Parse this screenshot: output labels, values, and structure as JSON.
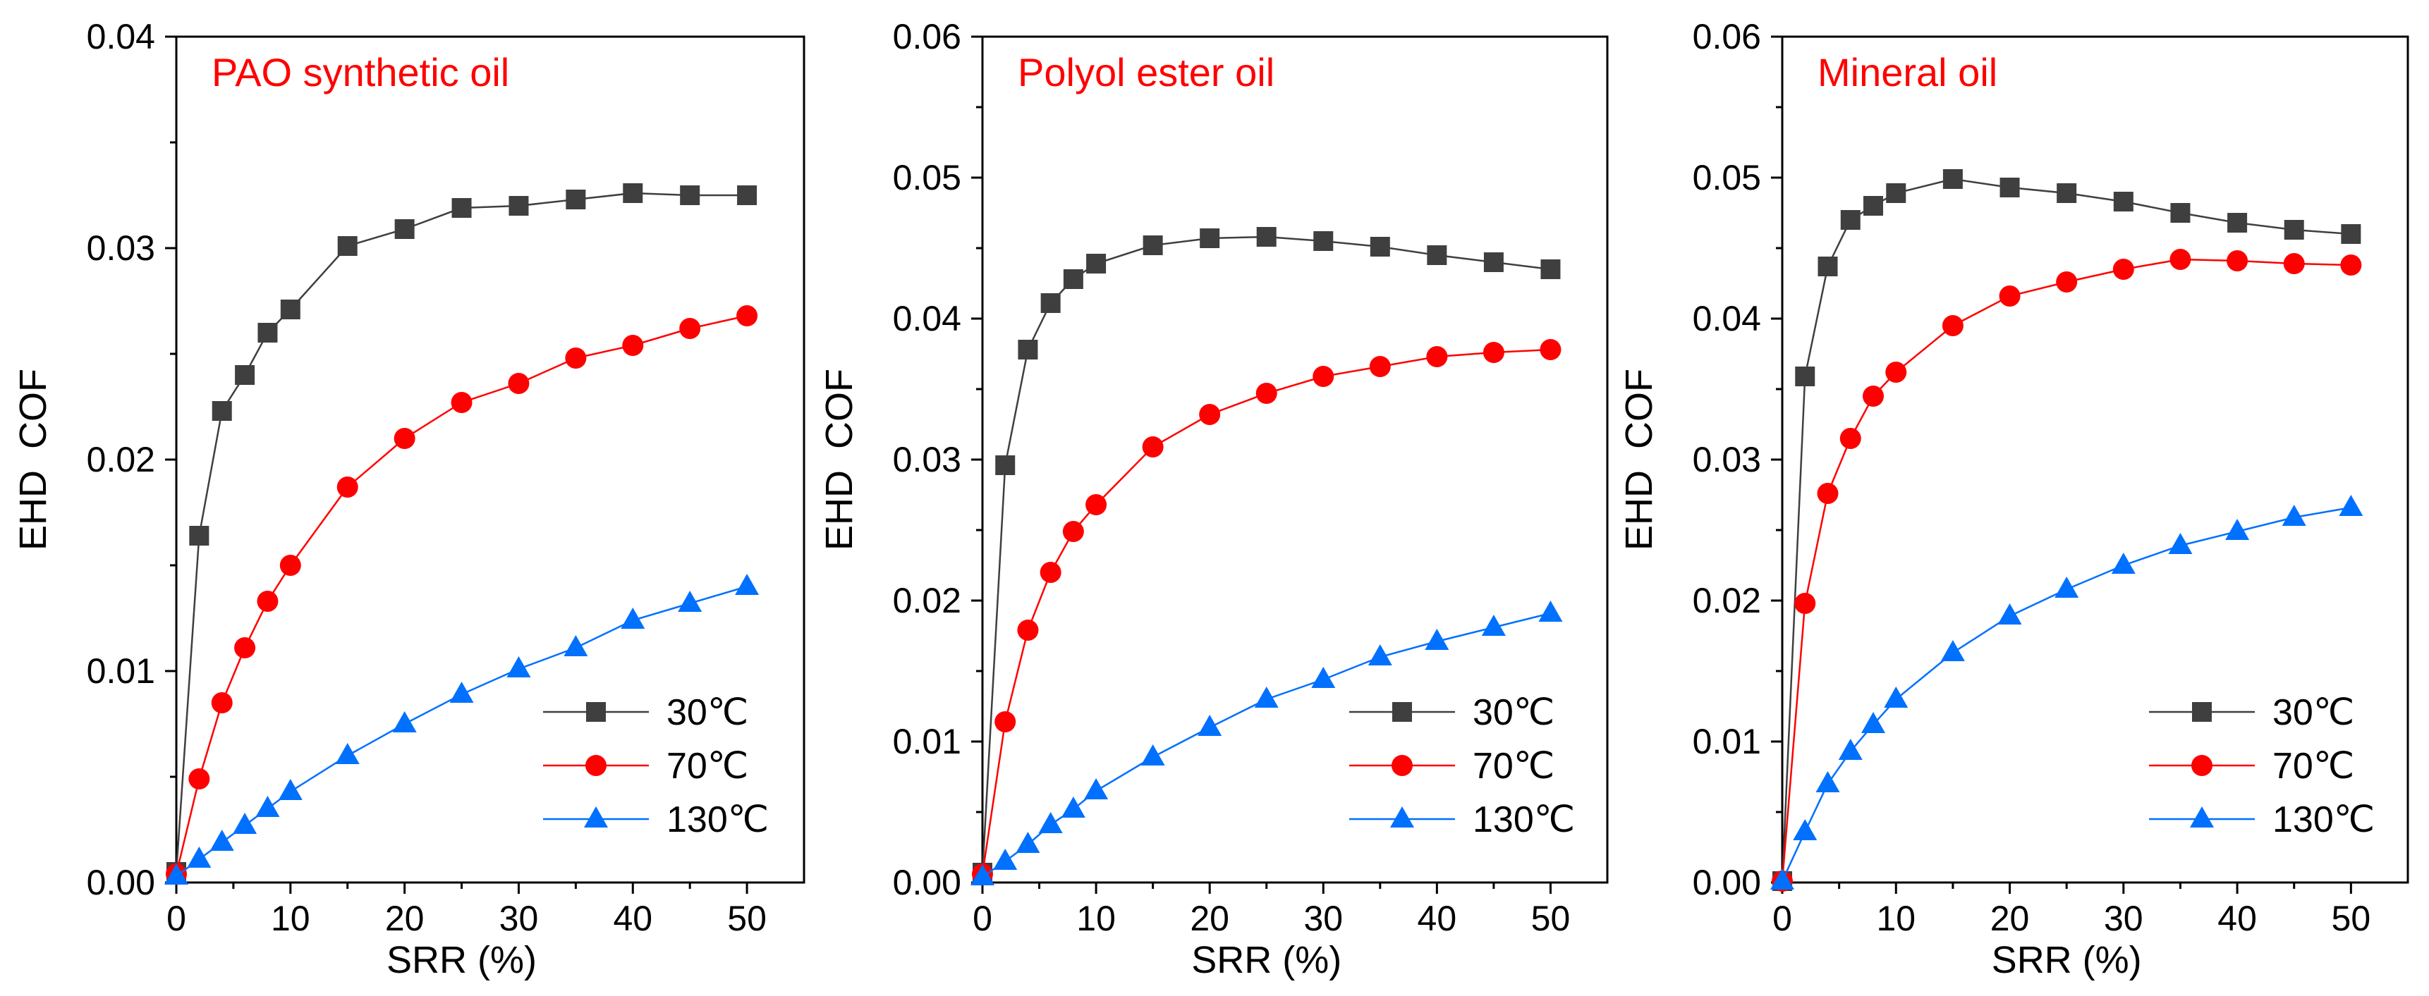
{
  "chart_data": [
    {
      "type": "line",
      "title": "PAO synthetic oil",
      "xlabel": "SRR (%)",
      "ylabel": "EHD  COF",
      "xlim": [
        0,
        55
      ],
      "ylim": [
        0,
        0.04
      ],
      "xticks": [
        0,
        10,
        20,
        30,
        40,
        50
      ],
      "xtick_labels": [
        "0",
        "10",
        "20",
        "30",
        "40",
        "50"
      ],
      "yticks": [
        0,
        0.01,
        0.02,
        0.03,
        0.04
      ],
      "ytick_labels": [
        "0.00",
        "0.01",
        "0.02",
        "0.03",
        "0.04"
      ],
      "x": [
        0,
        2,
        4,
        6,
        8,
        10,
        15,
        20,
        25,
        30,
        35,
        40,
        45,
        50
      ],
      "series": [
        {
          "name": "30℃",
          "marker": "square",
          "color": "#3f3f3f",
          "values": [
            0.0005,
            0.0164,
            0.0223,
            0.024,
            0.026,
            0.0271,
            0.0301,
            0.0309,
            0.0319,
            0.032,
            0.0323,
            0.0326,
            0.0325,
            0.0325
          ]
        },
        {
          "name": "70℃",
          "marker": "circle",
          "color": "#ff0000",
          "values": [
            0.0004,
            0.0049,
            0.0085,
            0.0111,
            0.0133,
            0.015,
            0.0187,
            0.021,
            0.0227,
            0.0236,
            0.0248,
            0.0254,
            0.0262,
            0.0268
          ]
        },
        {
          "name": "130℃",
          "marker": "triangle",
          "color": "#0070ff",
          "values": [
            0.0003,
            0.0011,
            0.0019,
            0.0027,
            0.0035,
            0.0043,
            0.006,
            0.0075,
            0.0089,
            0.0101,
            0.0111,
            0.0124,
            0.0132,
            0.014
          ]
        }
      ]
    },
    {
      "type": "line",
      "title": "Polyol ester oil",
      "xlabel": "SRR (%)",
      "ylabel": "EHD  COF",
      "xlim": [
        0,
        55
      ],
      "ylim": [
        0,
        0.06
      ],
      "xticks": [
        0,
        10,
        20,
        30,
        40,
        50
      ],
      "xtick_labels": [
        "0",
        "10",
        "20",
        "30",
        "40",
        "50"
      ],
      "yticks": [
        0,
        0.01,
        0.02,
        0.03,
        0.04,
        0.05,
        0.06
      ],
      "ytick_labels": [
        "0.00",
        "0.01",
        "0.02",
        "0.03",
        "0.04",
        "0.05",
        "0.06"
      ],
      "x": [
        0,
        2,
        4,
        6,
        8,
        10,
        15,
        20,
        25,
        30,
        35,
        40,
        45,
        50
      ],
      "series": [
        {
          "name": "30℃",
          "marker": "square",
          "color": "#3f3f3f",
          "values": [
            0.0007,
            0.0296,
            0.0378,
            0.0411,
            0.0428,
            0.0439,
            0.0452,
            0.0457,
            0.0458,
            0.0455,
            0.0451,
            0.0445,
            0.044,
            0.0435
          ]
        },
        {
          "name": "70℃",
          "marker": "circle",
          "color": "#ff0000",
          "values": [
            0.0006,
            0.0114,
            0.0179,
            0.022,
            0.0249,
            0.0268,
            0.0309,
            0.0332,
            0.0347,
            0.0359,
            0.0366,
            0.0373,
            0.0376,
            0.0378
          ]
        },
        {
          "name": "130℃",
          "marker": "triangle",
          "color": "#0070ff",
          "values": [
            0.0004,
            0.0015,
            0.0027,
            0.0041,
            0.0052,
            0.0065,
            0.0089,
            0.011,
            0.013,
            0.0144,
            0.016,
            0.0171,
            0.0181,
            0.0191
          ]
        }
      ]
    },
    {
      "type": "line",
      "title": "Mineral oil",
      "xlabel": "SRR (%)",
      "ylabel": "EHD  COF",
      "xlim": [
        0,
        55
      ],
      "ylim": [
        0,
        0.06
      ],
      "xticks": [
        0,
        10,
        20,
        30,
        40,
        50
      ],
      "xtick_labels": [
        "0",
        "10",
        "20",
        "30",
        "40",
        "50"
      ],
      "yticks": [
        0,
        0.01,
        0.02,
        0.03,
        0.04,
        0.05,
        0.06
      ],
      "ytick_labels": [
        "0.00",
        "0.01",
        "0.02",
        "0.03",
        "0.04",
        "0.05",
        "0.06"
      ],
      "x": [
        0,
        2,
        4,
        6,
        8,
        10,
        15,
        20,
        25,
        30,
        35,
        40,
        45,
        50
      ],
      "series": [
        {
          "name": "30℃",
          "marker": "square",
          "color": "#3f3f3f",
          "values": [
            0.0001,
            0.0359,
            0.0437,
            0.047,
            0.048,
            0.0489,
            0.0499,
            0.0493,
            0.0489,
            0.0483,
            0.0475,
            0.0468,
            0.0463,
            0.046
          ]
        },
        {
          "name": "70℃",
          "marker": "circle",
          "color": "#ff0000",
          "values": [
            0.0001,
            0.0198,
            0.0276,
            0.0315,
            0.0345,
            0.0362,
            0.0395,
            0.0416,
            0.0426,
            0.0435,
            0.0442,
            0.0441,
            0.0439,
            0.0438
          ]
        },
        {
          "name": "130℃",
          "marker": "triangle",
          "color": "#0070ff",
          "values": [
            0.0001,
            0.0036,
            0.007,
            0.0093,
            0.0112,
            0.013,
            0.0163,
            0.0189,
            0.0208,
            0.0225,
            0.0239,
            0.0249,
            0.0259,
            0.0266
          ]
        }
      ]
    }
  ]
}
